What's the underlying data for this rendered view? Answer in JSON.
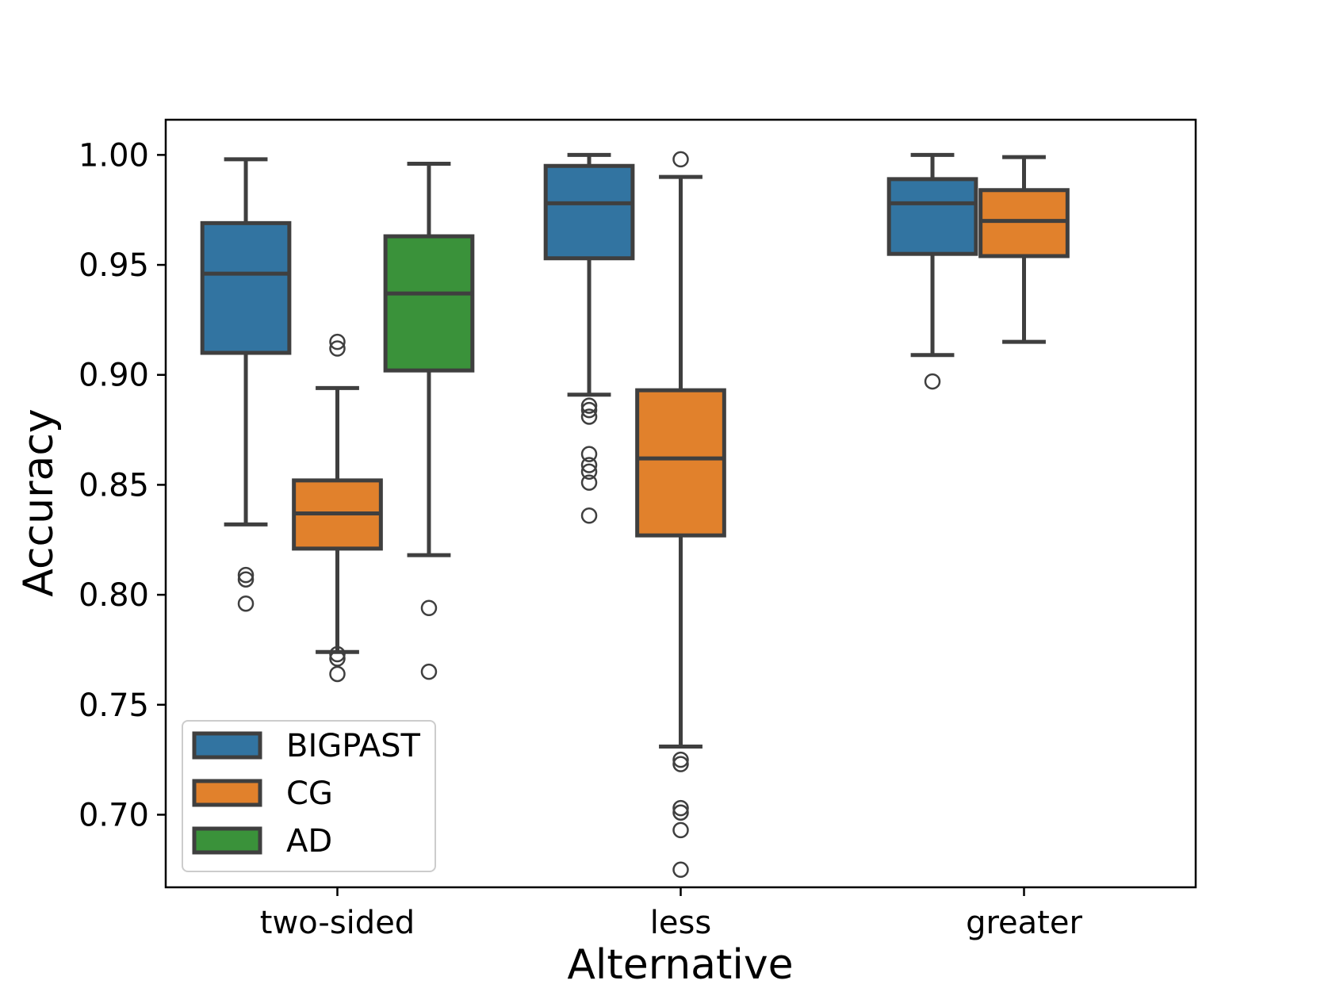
{
  "chart_data": {
    "type": "box",
    "title": "",
    "xlabel": "Alternative",
    "ylabel": "Accuracy",
    "ylim": [
      0.667,
      1.016
    ],
    "yticks": [
      "0.70",
      "0.75",
      "0.80",
      "0.85",
      "0.90",
      "0.95",
      "1.00"
    ],
    "categories": [
      "two-sided",
      "less",
      "greater"
    ],
    "legend_position": "lower-left",
    "series": [
      {
        "name": "BIGPAST",
        "color": "#3274a1",
        "boxes": [
          {
            "category": "two-sided",
            "whisker_low": 0.832,
            "q1": 0.91,
            "median": 0.946,
            "q3": 0.969,
            "whisker_high": 0.998,
            "outliers": [
              0.809,
              0.807,
              0.796
            ]
          },
          {
            "category": "less",
            "whisker_low": 0.891,
            "q1": 0.953,
            "median": 0.978,
            "q3": 0.995,
            "whisker_high": 1.0,
            "outliers": [
              0.886,
              0.884,
              0.881,
              0.864,
              0.859,
              0.856,
              0.851,
              0.836
            ]
          },
          {
            "category": "greater",
            "whisker_low": 0.909,
            "q1": 0.955,
            "median": 0.978,
            "q3": 0.989,
            "whisker_high": 1.0,
            "outliers": [
              0.897
            ]
          }
        ]
      },
      {
        "name": "CG",
        "color": "#e1812c",
        "boxes": [
          {
            "category": "two-sided",
            "whisker_low": 0.774,
            "q1": 0.821,
            "median": 0.837,
            "q3": 0.852,
            "whisker_high": 0.894,
            "outliers": [
              0.915,
              0.912,
              0.773,
              0.771,
              0.764
            ]
          },
          {
            "category": "less",
            "whisker_low": 0.731,
            "q1": 0.827,
            "median": 0.862,
            "q3": 0.893,
            "whisker_high": 0.99,
            "outliers": [
              0.998,
              0.725,
              0.723,
              0.703,
              0.701,
              0.693,
              0.675
            ]
          },
          {
            "category": "greater",
            "whisker_low": 0.915,
            "q1": 0.954,
            "median": 0.97,
            "q3": 0.984,
            "whisker_high": 0.999,
            "outliers": []
          }
        ]
      },
      {
        "name": "AD",
        "color": "#3a923a",
        "boxes": [
          {
            "category": "two-sided",
            "whisker_low": 0.818,
            "q1": 0.902,
            "median": 0.937,
            "q3": 0.963,
            "whisker_high": 0.996,
            "outliers": [
              0.794,
              0.765
            ]
          }
        ]
      }
    ]
  }
}
